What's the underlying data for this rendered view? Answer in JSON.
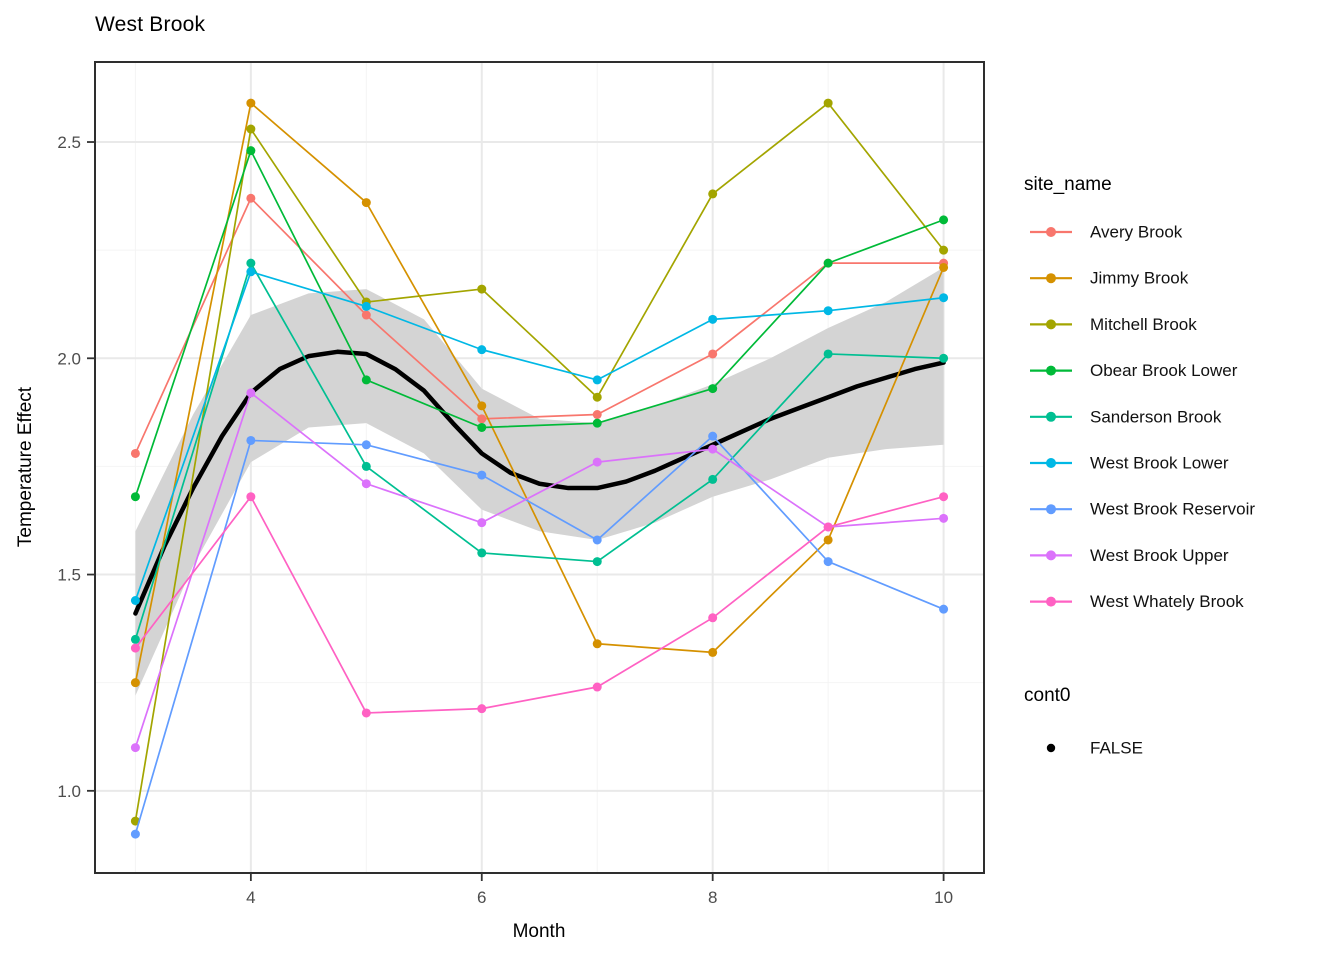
{
  "title": "West Brook",
  "axes": {
    "x": {
      "title": "Month",
      "tick_labels": [
        "4",
        "6",
        "8",
        "10"
      ],
      "major_ticks": [
        4,
        6,
        8,
        10
      ],
      "minor_ticks": [
        3,
        5,
        7,
        9
      ],
      "range": [
        2.65,
        10.35
      ]
    },
    "y": {
      "title": "Temperature Effect",
      "tick_labels": [
        "1.0",
        "1.5",
        "2.0",
        "2.5"
      ],
      "major_ticks": [
        1.0,
        1.5,
        2.0,
        2.5
      ],
      "minor_ticks": [
        1.25,
        1.75,
        2.25
      ],
      "range": [
        0.81,
        2.685
      ]
    }
  },
  "legend": {
    "site_title": "site_name",
    "cont_title": "cont0",
    "cont_entries": [
      {
        "label": "FALSE",
        "color": "#000000"
      }
    ]
  },
  "chart_data": {
    "type": "line",
    "title": "West Brook",
    "xlabel": "Month",
    "ylabel": "Temperature Effect",
    "xlim": [
      2.65,
      10.35
    ],
    "ylim": [
      0.81,
      2.685
    ],
    "grid": true,
    "legend_position": "right",
    "x": [
      3,
      4,
      5,
      6,
      7,
      8,
      9,
      10
    ],
    "series": [
      {
        "name": "Avery Brook",
        "color": "#F8766D",
        "values": [
          1.78,
          2.37,
          2.1,
          1.86,
          1.87,
          2.01,
          2.22,
          2.22
        ]
      },
      {
        "name": "Jimmy Brook",
        "color": "#D59100",
        "values": [
          1.25,
          2.59,
          2.36,
          1.89,
          1.34,
          1.32,
          1.58,
          2.21
        ]
      },
      {
        "name": "Mitchell Brook",
        "color": "#A3A500",
        "values": [
          0.93,
          2.53,
          2.13,
          2.16,
          1.91,
          2.38,
          2.59,
          2.25
        ]
      },
      {
        "name": "Obear Brook Lower",
        "color": "#00BA38",
        "values": [
          1.68,
          2.48,
          1.95,
          1.84,
          1.85,
          1.93,
          2.22,
          2.32
        ]
      },
      {
        "name": "Sanderson Brook",
        "color": "#00BF92",
        "values": [
          1.35,
          2.22,
          1.75,
          1.55,
          1.53,
          1.72,
          2.01,
          2.0
        ]
      },
      {
        "name": "West Brook Lower",
        "color": "#00B8E5",
        "values": [
          1.44,
          2.2,
          2.12,
          2.02,
          1.95,
          2.09,
          2.11,
          2.14
        ]
      },
      {
        "name": "West Brook Reservoir",
        "color": "#619CFF",
        "values": [
          0.9,
          1.81,
          1.8,
          1.73,
          1.58,
          1.82,
          1.53,
          1.42
        ]
      },
      {
        "name": "West Brook Upper",
        "color": "#DB72FB",
        "values": [
          1.1,
          1.92,
          1.71,
          1.62,
          1.76,
          1.79,
          1.61,
          1.63
        ]
      },
      {
        "name": "West Whately Brook",
        "color": "#FF61C3",
        "values": [
          1.33,
          1.68,
          1.18,
          1.19,
          1.24,
          1.4,
          1.61,
          1.68
        ]
      }
    ],
    "smooth": {
      "name": "FALSE",
      "color": "#000000",
      "x": [
        3,
        3.25,
        3.5,
        3.75,
        4,
        4.25,
        4.5,
        4.75,
        5,
        5.25,
        5.5,
        5.75,
        6,
        6.25,
        6.5,
        6.75,
        7,
        7.25,
        7.5,
        7.75,
        8,
        8.25,
        8.5,
        8.75,
        9,
        9.25,
        9.5,
        9.75,
        10
      ],
      "y": [
        1.41,
        1.565,
        1.7,
        1.82,
        1.92,
        1.975,
        2.005,
        2.015,
        2.01,
        1.975,
        1.925,
        1.85,
        1.78,
        1.735,
        1.71,
        1.7,
        1.7,
        1.715,
        1.74,
        1.77,
        1.8,
        1.83,
        1.86,
        1.885,
        1.91,
        1.935,
        1.955,
        1.975,
        1.99
      ]
    },
    "band": {
      "color": "#D4D4D4",
      "x": [
        3,
        3.5,
        4,
        4.5,
        5,
        5.5,
        6,
        6.5,
        7,
        7.5,
        8,
        8.5,
        9,
        9.5,
        10
      ],
      "upper": [
        1.6,
        1.87,
        2.1,
        2.15,
        2.16,
        2.09,
        1.93,
        1.86,
        1.85,
        1.89,
        1.94,
        2.0,
        2.07,
        2.13,
        2.21
      ],
      "lower": [
        1.22,
        1.52,
        1.76,
        1.84,
        1.85,
        1.78,
        1.65,
        1.6,
        1.58,
        1.62,
        1.68,
        1.72,
        1.77,
        1.79,
        1.8
      ]
    }
  },
  "style": {
    "panel_border": "#2E2E2E",
    "grid_major": "#E9E9E9",
    "grid_minor": "#F4F4F4",
    "tick_color": "#333333",
    "tick_label_color": "#4D4D4D",
    "axis_title_color": "#000000",
    "legend_text_color": "#111111"
  }
}
